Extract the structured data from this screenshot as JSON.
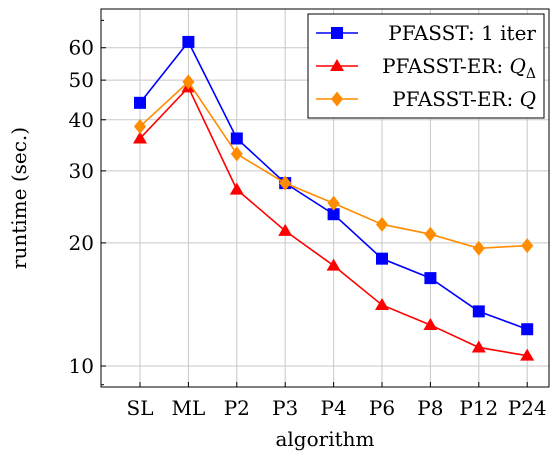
{
  "chart_data": {
    "type": "line",
    "title": "",
    "xlabel": "algorithm",
    "ylabel": "runtime (sec.)",
    "yscale": "log",
    "ylim": [
      9,
      80
    ],
    "yticks": [
      10,
      20,
      30,
      40,
      50,
      60
    ],
    "grid": true,
    "legend_position": "top-right",
    "categories": [
      "SL",
      "ML",
      "P2",
      "P3",
      "P4",
      "P6",
      "P8",
      "P12",
      "P24"
    ],
    "series": [
      {
        "name": "PFASST: 1 iter",
        "legend_math": "",
        "color": "#0000ff",
        "marker": "square",
        "values": [
          44,
          62,
          36,
          28,
          23.5,
          18.3,
          16.4,
          13.6,
          12.3
        ]
      },
      {
        "name": "PFASST-ER: ",
        "legend_math": "Q",
        "legend_sub": "Δ",
        "color": "#ff0000",
        "marker": "triangle",
        "values": [
          36,
          48,
          27,
          21.4,
          17.6,
          14.1,
          12.6,
          11.1,
          10.6
        ]
      },
      {
        "name": "PFASST-ER: ",
        "legend_math": "Q",
        "legend_sub": "",
        "color": "#ff8c00",
        "marker": "diamond",
        "values": [
          38.5,
          49.5,
          33,
          28,
          25,
          22.2,
          21,
          19.4,
          19.7
        ]
      }
    ]
  }
}
